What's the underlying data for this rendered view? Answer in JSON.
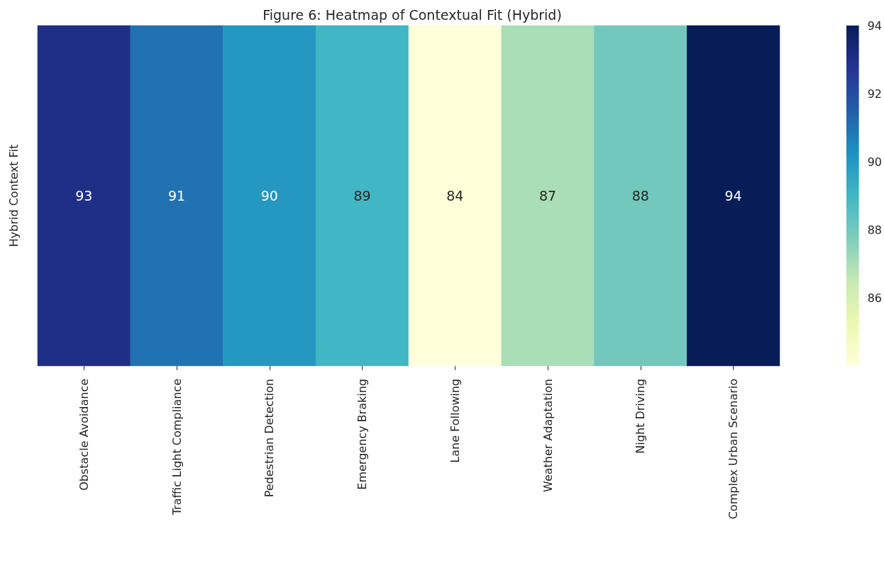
{
  "chart_data": {
    "type": "heatmap",
    "title": "Figure 6: Heatmap of Contextual Fit (Hybrid)",
    "ylabel": "Hybrid Context Fit",
    "categories": [
      "Obstacle Avoidance",
      "Traffic Light Compliance",
      "Pedestrian Detection",
      "Emergency Braking",
      "Lane Following",
      "Weather Adaptation",
      "Night Driving",
      "Complex Urban Scenario"
    ],
    "y_categories": [
      null
    ],
    "cells": [
      [
        93,
        91,
        90,
        89,
        84,
        87,
        88,
        94
      ]
    ],
    "data_labels": true,
    "clim": [
      84,
      94
    ],
    "cticks": [
      86,
      88,
      90,
      92,
      94
    ]
  }
}
